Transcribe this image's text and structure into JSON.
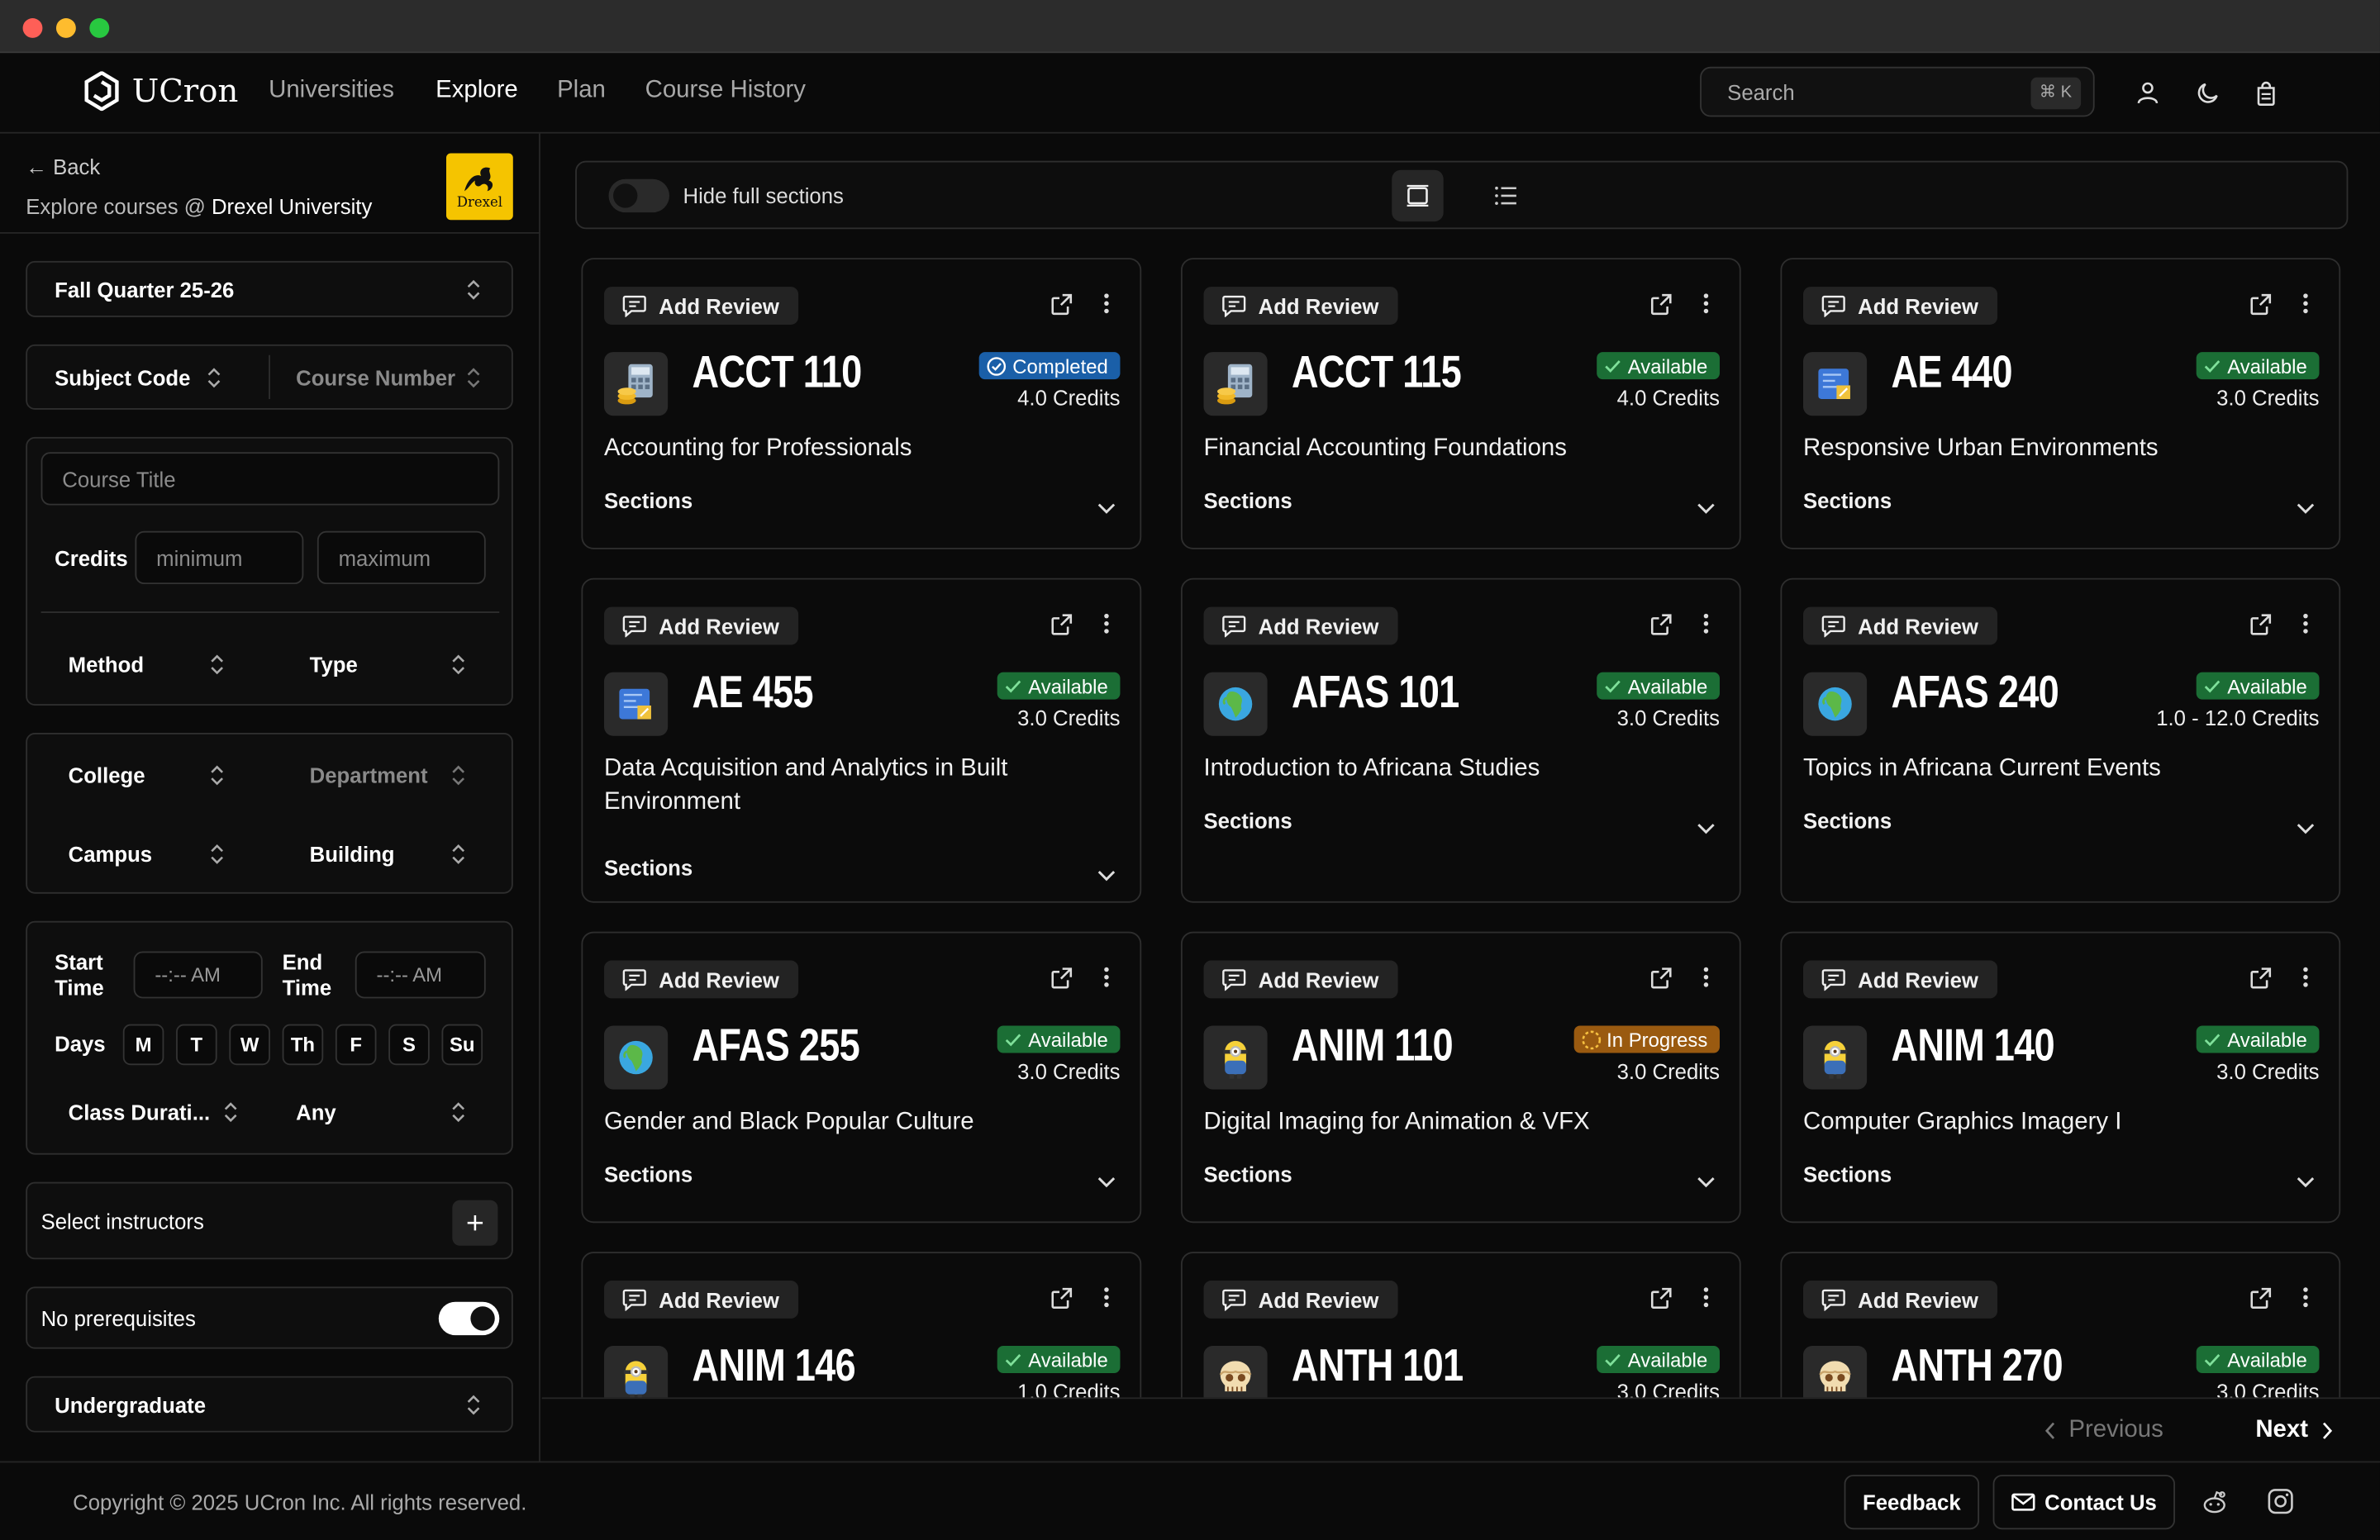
{
  "brand": {
    "name": "UCron"
  },
  "nav": {
    "universities": "Universities",
    "explore": "Explore",
    "plan": "Plan",
    "course_history": "Course History"
  },
  "search": {
    "placeholder": "Search",
    "shortcut": "⌘ K"
  },
  "sidebar": {
    "back": "Back",
    "explore_prefix": "Explore courses @ ",
    "university": "Drexel University",
    "university_logo_text": "Drexel",
    "term": "Fall Quarter 25-26",
    "subject_code": "Subject Code",
    "course_number": "Course Number",
    "course_title_placeholder": "Course Title",
    "credits_label": "Credits",
    "credits_min_placeholder": "minimum",
    "credits_max_placeholder": "maximum",
    "method": "Method",
    "type": "Type",
    "college": "College",
    "department": "Department",
    "campus": "Campus",
    "building": "Building",
    "start_time_label": "Start Time",
    "start_time_value": "--:-- AM",
    "end_time_label": "End Time",
    "end_time_value": "--:-- AM",
    "days_label": "Days",
    "days": [
      "M",
      "T",
      "W",
      "Th",
      "F",
      "S",
      "Su"
    ],
    "class_duration": "Class Durati...",
    "duration_value": "Any",
    "select_instructors": "Select instructors",
    "no_prereq": "No prerequisites",
    "no_prereq_on": true,
    "level": "Undergraduate"
  },
  "toolbar": {
    "hide_full_sections": "Hide full sections",
    "hide_full_on": false
  },
  "card_labels": {
    "add_review": "Add Review",
    "sections": "Sections"
  },
  "courses": [
    {
      "code": "ACCT 110",
      "status": "Completed",
      "credits": "4.0 Credits",
      "title": "Accounting for Professionals",
      "icon": "calculator-coins-icon"
    },
    {
      "code": "ACCT 115",
      "status": "Available",
      "credits": "4.0 Credits",
      "title": "Financial Accounting Foundations",
      "icon": "calculator-coins-icon"
    },
    {
      "code": "AE 440",
      "status": "Available",
      "credits": "3.0 Credits",
      "title": "Responsive Urban Environments",
      "icon": "blueprint-icon"
    },
    {
      "code": "AE 455",
      "status": "Available",
      "credits": "3.0 Credits",
      "title": "Data Acquisition and Analytics in Built Environment",
      "icon": "blueprint-icon"
    },
    {
      "code": "AFAS 101",
      "status": "Available",
      "credits": "3.0 Credits",
      "title": "Introduction to Africana Studies",
      "icon": "globe-africa-icon"
    },
    {
      "code": "AFAS 240",
      "status": "Available",
      "credits": "1.0 - 12.0 Credits",
      "title": "Topics in Africana Current Events",
      "icon": "globe-africa-icon"
    },
    {
      "code": "AFAS 255",
      "status": "Available",
      "credits": "3.0 Credits",
      "title": "Gender and Black Popular Culture",
      "icon": "globe-africa-icon"
    },
    {
      "code": "ANIM 110",
      "status": "In Progress",
      "credits": "3.0 Credits",
      "title": "Digital Imaging for Animation & VFX",
      "icon": "minion-icon"
    },
    {
      "code": "ANIM 140",
      "status": "Available",
      "credits": "3.0 Credits",
      "title": "Computer Graphics Imagery I",
      "icon": "minion-icon"
    },
    {
      "code": "ANIM 146",
      "status": "Available",
      "credits": "1.0 Credits",
      "title": "",
      "icon": "minion-icon"
    },
    {
      "code": "ANTH 101",
      "status": "Available",
      "credits": "3.0 Credits",
      "title": "",
      "icon": "skull-icon"
    },
    {
      "code": "ANTH 270",
      "status": "Available",
      "credits": "3.0 Credits",
      "title": "",
      "icon": "skull-icon"
    }
  ],
  "pager": {
    "previous": "Previous",
    "next": "Next"
  },
  "footer": {
    "copyright": "Copyright © 2025 UCron Inc. All rights reserved.",
    "feedback": "Feedback",
    "contact": "Contact Us"
  },
  "colors": {
    "available": "#1f7a3a",
    "completed": "#1a5fa8",
    "in_progress": "#9a5a10",
    "accent_yellow": "#f5c400"
  }
}
